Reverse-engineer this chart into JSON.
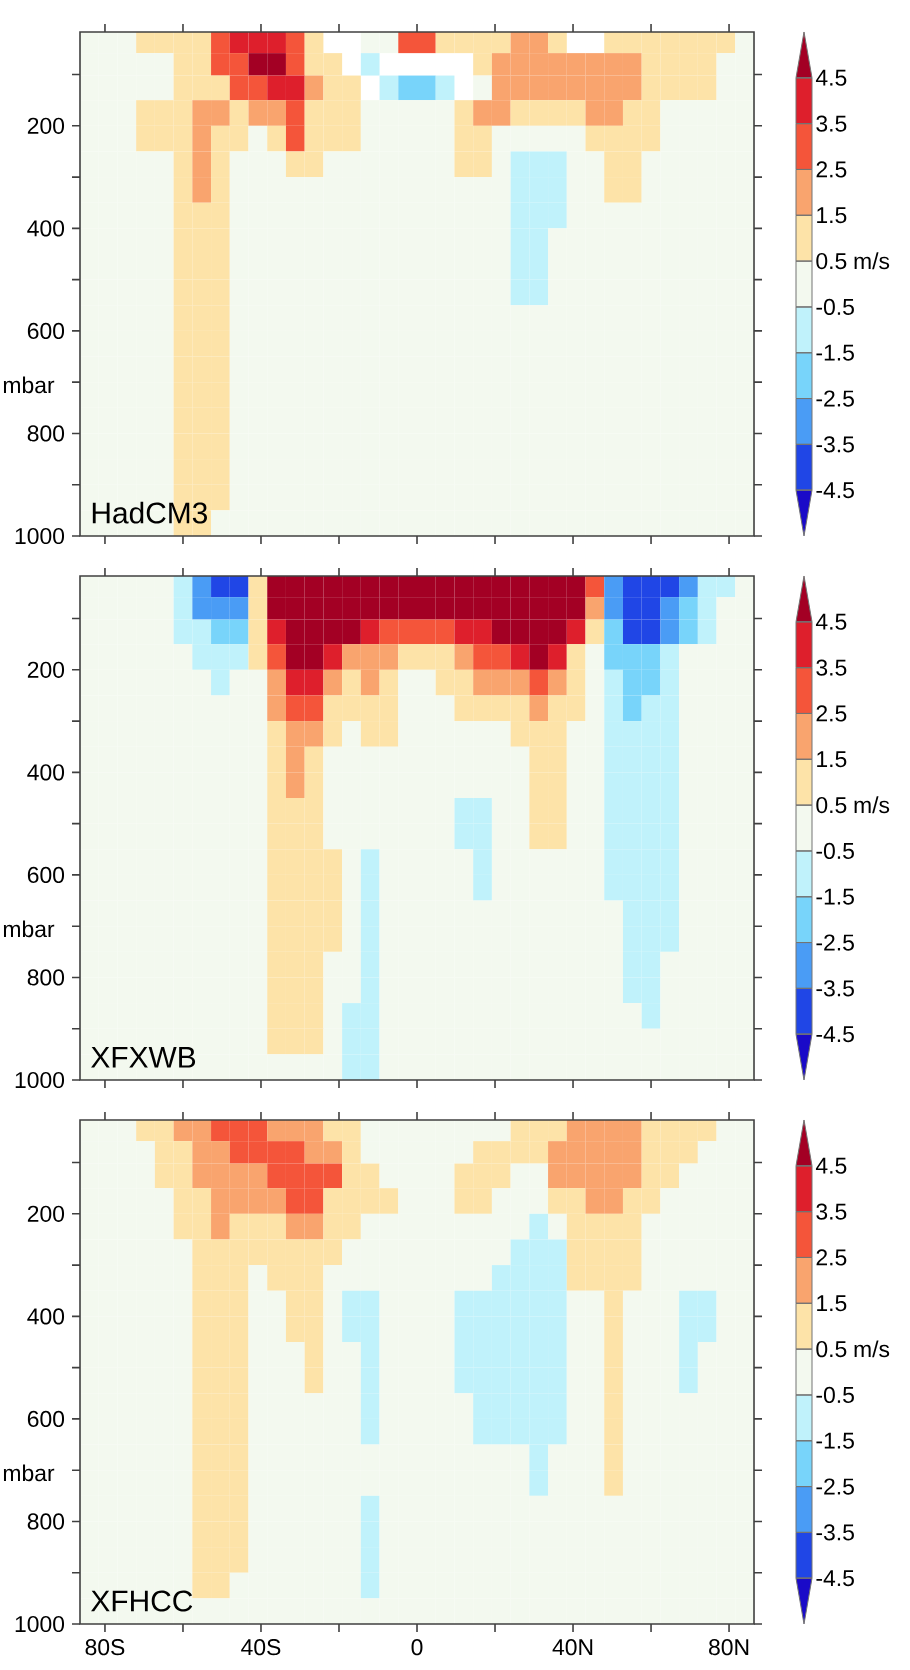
{
  "chart_data": [
    {
      "type": "heatmap",
      "title": "HadCM3",
      "ylabel": "mbar",
      "tick_labels": "y",
      "x": [
        -84.0,
        -79.2,
        -74.4,
        -69.6,
        -64.8,
        -60.0,
        -55.2,
        -50.4,
        -45.6,
        -40.8,
        -36.0,
        -31.2,
        -26.4,
        -21.6,
        -16.8,
        -12.0,
        -7.2,
        -2.4,
        2.4,
        7.2,
        12.0,
        16.8,
        21.6,
        26.4,
        31.2,
        36.0,
        40.8,
        45.6,
        50.4,
        55.2,
        60.0,
        64.8,
        69.6,
        74.4,
        79.2,
        84.0
      ],
      "y": [
        37.5,
        79,
        125,
        175,
        225,
        275,
        325,
        375,
        425,
        475,
        525,
        575,
        625,
        675,
        725,
        775,
        825,
        875,
        925,
        975
      ],
      "xlim": [
        -86.4,
        86.4
      ],
      "ylim": [
        1000,
        17
      ],
      "xticks": [
        {
          "value": -80,
          "label": null
        },
        {
          "value": -60,
          "label": null
        },
        {
          "value": -40,
          "label": null
        },
        {
          "value": -20,
          "label": null
        },
        {
          "value": 0,
          "label": null
        },
        {
          "value": 20,
          "label": null
        },
        {
          "value": 40,
          "label": null
        },
        {
          "value": 60,
          "label": null
        },
        {
          "value": 80,
          "label": null
        }
      ],
      "yticks": [
        {
          "value": 100,
          "label": null
        },
        200,
        {
          "value": 300,
          "label": null
        },
        400,
        {
          "value": 500,
          "label": null
        },
        600,
        {
          "value": 700,
          "label": null
        },
        800,
        {
          "value": 900,
          "label": null
        },
        1000
      ],
      "clim": [
        -5.5,
        5.5
      ],
      "cticks": [
        -4.5,
        -3.5,
        -2.5,
        -1.5,
        -0.5,
        0.5,
        1.5,
        2.5,
        3.5,
        4.5
      ],
      "clabel": "m/s",
      "cells": [
        [
          0,
          0,
          0,
          1,
          1,
          1,
          1,
          3,
          4,
          4,
          4,
          3,
          1,
          null,
          null,
          0,
          0,
          3,
          3,
          1,
          1,
          1,
          1,
          2,
          2,
          1,
          null,
          null,
          1,
          1,
          1,
          1,
          1,
          1,
          1,
          0
        ],
        [
          0,
          0,
          0,
          0,
          0,
          1,
          1,
          3,
          3,
          5,
          5,
          3,
          1,
          1,
          null,
          -1,
          null,
          null,
          null,
          null,
          null,
          1,
          2,
          2,
          2,
          2,
          2,
          2,
          2,
          2,
          1,
          1,
          1,
          1,
          0,
          0
        ],
        [
          0,
          0,
          0,
          0,
          0,
          1,
          1,
          1,
          3,
          3,
          4,
          4,
          2,
          1,
          1,
          null,
          -1,
          -2,
          -2,
          -1,
          null,
          0,
          2,
          2,
          2,
          2,
          2,
          2,
          2,
          2,
          1,
          1,
          1,
          1,
          0,
          0
        ],
        [
          0,
          0,
          0,
          1,
          1,
          1,
          2,
          2,
          1,
          2,
          2,
          3,
          1,
          1,
          1,
          0,
          0,
          0,
          0,
          0,
          1,
          2,
          2,
          1,
          1,
          1,
          1,
          2,
          2,
          1,
          1,
          0,
          0,
          0,
          0,
          0
        ],
        [
          0,
          0,
          0,
          1,
          1,
          1,
          2,
          1,
          1,
          0,
          1,
          3,
          1,
          1,
          1,
          0,
          0,
          0,
          0,
          0,
          1,
          1,
          0,
          0,
          0,
          0,
          0,
          1,
          1,
          1,
          1,
          0,
          0,
          0,
          0,
          0
        ],
        [
          0,
          0,
          0,
          0,
          0,
          1,
          2,
          1,
          0,
          0,
          0,
          1,
          1,
          0,
          0,
          0,
          0,
          0,
          0,
          0,
          1,
          1,
          0,
          -1,
          -1,
          -1,
          0,
          0,
          1,
          1,
          0,
          0,
          0,
          0,
          0,
          0
        ],
        [
          0,
          0,
          0,
          0,
          0,
          1,
          2,
          1,
          0,
          0,
          0,
          0,
          0,
          0,
          0,
          0,
          0,
          0,
          0,
          0,
          0,
          0,
          0,
          -1,
          -1,
          -1,
          0,
          0,
          1,
          1,
          0,
          0,
          0,
          0,
          0,
          0
        ],
        [
          0,
          0,
          0,
          0,
          0,
          1,
          1,
          1,
          0,
          0,
          0,
          0,
          0,
          0,
          0,
          0,
          0,
          0,
          0,
          0,
          0,
          0,
          0,
          -1,
          -1,
          -1,
          0,
          0,
          0,
          0,
          0,
          0,
          0,
          0,
          0,
          0
        ],
        [
          0,
          0,
          0,
          0,
          0,
          1,
          1,
          1,
          0,
          0,
          0,
          0,
          0,
          0,
          0,
          0,
          0,
          0,
          0,
          0,
          0,
          0,
          0,
          -1,
          -1,
          0,
          0,
          0,
          0,
          0,
          0,
          0,
          0,
          0,
          0,
          0
        ],
        [
          0,
          0,
          0,
          0,
          0,
          1,
          1,
          1,
          0,
          0,
          0,
          0,
          0,
          0,
          0,
          0,
          0,
          0,
          0,
          0,
          0,
          0,
          0,
          -1,
          -1,
          0,
          0,
          0,
          0,
          0,
          0,
          0,
          0,
          0,
          0,
          0
        ],
        [
          0,
          0,
          0,
          0,
          0,
          1,
          1,
          1,
          0,
          0,
          0,
          0,
          0,
          0,
          0,
          0,
          0,
          0,
          0,
          0,
          0,
          0,
          0,
          -1,
          -1,
          0,
          0,
          0,
          0,
          0,
          0,
          0,
          0,
          0,
          0,
          0
        ],
        [
          0,
          0,
          0,
          0,
          0,
          1,
          1,
          1,
          0,
          0,
          0,
          0,
          0,
          0,
          0,
          0,
          0,
          0,
          0,
          0,
          0,
          0,
          0,
          0,
          0,
          0,
          0,
          0,
          0,
          0,
          0,
          0,
          0,
          0,
          0,
          0
        ],
        [
          0,
          0,
          0,
          0,
          0,
          1,
          1,
          1,
          0,
          0,
          0,
          0,
          0,
          0,
          0,
          0,
          0,
          0,
          0,
          0,
          0,
          0,
          0,
          0,
          0,
          0,
          0,
          0,
          0,
          0,
          0,
          0,
          0,
          0,
          0,
          0
        ],
        [
          0,
          0,
          0,
          0,
          0,
          1,
          1,
          1,
          0,
          0,
          0,
          0,
          0,
          0,
          0,
          0,
          0,
          0,
          0,
          0,
          0,
          0,
          0,
          0,
          0,
          0,
          0,
          0,
          0,
          0,
          0,
          0,
          0,
          0,
          0,
          0
        ],
        [
          0,
          0,
          0,
          0,
          0,
          1,
          1,
          1,
          0,
          0,
          0,
          0,
          0,
          0,
          0,
          0,
          0,
          0,
          0,
          0,
          0,
          0,
          0,
          0,
          0,
          0,
          0,
          0,
          0,
          0,
          0,
          0,
          0,
          0,
          0,
          0
        ],
        [
          0,
          0,
          0,
          0,
          0,
          1,
          1,
          1,
          0,
          0,
          0,
          0,
          0,
          0,
          0,
          0,
          0,
          0,
          0,
          0,
          0,
          0,
          0,
          0,
          0,
          0,
          0,
          0,
          0,
          0,
          0,
          0,
          0,
          0,
          0,
          0
        ],
        [
          0,
          0,
          0,
          0,
          0,
          1,
          1,
          1,
          0,
          0,
          0,
          0,
          0,
          0,
          0,
          0,
          0,
          0,
          0,
          0,
          0,
          0,
          0,
          0,
          0,
          0,
          0,
          0,
          0,
          0,
          0,
          0,
          0,
          0,
          0,
          0
        ],
        [
          0,
          0,
          0,
          0,
          0,
          1,
          1,
          1,
          0,
          0,
          0,
          0,
          0,
          0,
          0,
          0,
          0,
          0,
          0,
          0,
          0,
          0,
          0,
          0,
          0,
          0,
          0,
          0,
          0,
          0,
          0,
          0,
          0,
          0,
          0,
          0
        ],
        [
          0,
          0,
          0,
          0,
          0,
          1,
          1,
          1,
          0,
          0,
          0,
          0,
          0,
          0,
          0,
          0,
          0,
          0,
          0,
          0,
          0,
          0,
          0,
          0,
          0,
          0,
          0,
          0,
          0,
          0,
          0,
          0,
          0,
          0,
          0,
          0
        ],
        [
          0,
          0,
          0,
          0,
          0,
          1,
          1,
          0,
          0,
          0,
          0,
          0,
          0,
          0,
          0,
          0,
          0,
          0,
          0,
          0,
          0,
          0,
          0,
          0,
          0,
          0,
          0,
          0,
          0,
          0,
          0,
          0,
          0,
          0,
          0,
          0
        ]
      ]
    },
    {
      "type": "heatmap",
      "title": "XFXWB",
      "ylabel": "mbar",
      "tick_labels": "y",
      "x": [
        -84.0,
        -79.2,
        -74.4,
        -69.6,
        -64.8,
        -60.0,
        -55.2,
        -50.4,
        -45.6,
        -40.8,
        -36.0,
        -31.2,
        -26.4,
        -21.6,
        -16.8,
        -12.0,
        -7.2,
        -2.4,
        2.4,
        7.2,
        12.0,
        16.8,
        21.6,
        26.4,
        31.2,
        36.0,
        40.8,
        45.6,
        50.4,
        55.2,
        60.0,
        64.8,
        69.6,
        74.4,
        79.2,
        84.0
      ],
      "y": [
        37.5,
        79,
        125,
        175,
        225,
        275,
        325,
        375,
        425,
        475,
        525,
        575,
        625,
        675,
        725,
        775,
        825,
        875,
        925,
        975
      ],
      "xlim": [
        -86.4,
        86.4
      ],
      "ylim": [
        1000,
        17
      ],
      "xticks": [
        {
          "value": -80,
          "label": null
        },
        {
          "value": -60,
          "label": null
        },
        {
          "value": -40,
          "label": null
        },
        {
          "value": -20,
          "label": null
        },
        {
          "value": 0,
          "label": null
        },
        {
          "value": 20,
          "label": null
        },
        {
          "value": 40,
          "label": null
        },
        {
          "value": 60,
          "label": null
        },
        {
          "value": 80,
          "label": null
        }
      ],
      "yticks": [
        {
          "value": 100,
          "label": null
        },
        200,
        {
          "value": 300,
          "label": null
        },
        400,
        {
          "value": 500,
          "label": null
        },
        600,
        {
          "value": 700,
          "label": null
        },
        800,
        {
          "value": 900,
          "label": null
        },
        1000
      ],
      "clim": [
        -5.5,
        5.5
      ],
      "cticks": [
        -4.5,
        -3.5,
        -2.5,
        -1.5,
        -0.5,
        0.5,
        1.5,
        2.5,
        3.5,
        4.5
      ],
      "clabel": "m/s",
      "cells": [
        [
          0,
          0,
          0,
          0,
          0,
          -1,
          -3,
          -4,
          -4,
          1,
          5,
          5,
          5,
          5,
          5,
          5,
          5,
          5,
          5,
          5,
          5,
          5,
          5,
          5,
          5,
          5,
          5,
          3,
          -3,
          -4,
          -4,
          -4,
          -3,
          -1,
          -1,
          0
        ],
        [
          0,
          0,
          0,
          0,
          0,
          -1,
          -3,
          -3,
          -3,
          1,
          5,
          5,
          5,
          5,
          5,
          5,
          5,
          5,
          5,
          5,
          5,
          5,
          5,
          5,
          5,
          5,
          5,
          2,
          -3,
          -4,
          -4,
          -3,
          -2,
          -1,
          0,
          0
        ],
        [
          0,
          0,
          0,
          0,
          0,
          -1,
          -1,
          -2,
          -2,
          1,
          4,
          5,
          5,
          5,
          5,
          4,
          3,
          3,
          3,
          3,
          4,
          4,
          5,
          5,
          5,
          5,
          4,
          1,
          -2,
          -4,
          -4,
          -3,
          -2,
          -1,
          0,
          0
        ],
        [
          0,
          0,
          0,
          0,
          0,
          0,
          -1,
          -1,
          -1,
          1,
          3,
          5,
          5,
          4,
          2,
          2,
          2,
          1,
          1,
          1,
          2,
          3,
          3,
          4,
          5,
          4,
          1,
          0,
          -2,
          -2,
          -2,
          -1,
          0,
          0,
          0,
          0
        ],
        [
          0,
          0,
          0,
          0,
          0,
          0,
          0,
          -1,
          0,
          0,
          2,
          4,
          4,
          2,
          1,
          2,
          1,
          0,
          0,
          1,
          1,
          2,
          2,
          2,
          3,
          2,
          1,
          0,
          -1,
          -2,
          -2,
          -1,
          0,
          0,
          0,
          0
        ],
        [
          0,
          0,
          0,
          0,
          0,
          0,
          0,
          0,
          0,
          0,
          2,
          3,
          3,
          1,
          1,
          1,
          1,
          0,
          0,
          0,
          1,
          1,
          1,
          1,
          2,
          1,
          1,
          0,
          -1,
          -2,
          -1,
          -1,
          0,
          0,
          0,
          0
        ],
        [
          0,
          0,
          0,
          0,
          0,
          0,
          0,
          0,
          0,
          0,
          1,
          2,
          2,
          1,
          0,
          1,
          1,
          0,
          0,
          0,
          0,
          0,
          0,
          1,
          1,
          1,
          0,
          0,
          -1,
          -1,
          -1,
          -1,
          0,
          0,
          0,
          0
        ],
        [
          0,
          0,
          0,
          0,
          0,
          0,
          0,
          0,
          0,
          0,
          1,
          2,
          1,
          0,
          0,
          0,
          0,
          0,
          0,
          0,
          0,
          0,
          0,
          0,
          1,
          1,
          0,
          0,
          -1,
          -1,
          -1,
          -1,
          0,
          0,
          0,
          0
        ],
        [
          0,
          0,
          0,
          0,
          0,
          0,
          0,
          0,
          0,
          0,
          1,
          2,
          1,
          0,
          0,
          0,
          0,
          0,
          0,
          0,
          0,
          0,
          0,
          0,
          1,
          1,
          0,
          0,
          -1,
          -1,
          -1,
          -1,
          0,
          0,
          0,
          0
        ],
        [
          0,
          0,
          0,
          0,
          0,
          0,
          0,
          0,
          0,
          0,
          1,
          1,
          1,
          0,
          0,
          0,
          0,
          0,
          0,
          0,
          -1,
          -1,
          0,
          0,
          1,
          1,
          0,
          0,
          -1,
          -1,
          -1,
          -1,
          0,
          0,
          0,
          0
        ],
        [
          0,
          0,
          0,
          0,
          0,
          0,
          0,
          0,
          0,
          0,
          1,
          1,
          1,
          0,
          0,
          0,
          0,
          0,
          0,
          0,
          -1,
          -1,
          0,
          0,
          1,
          1,
          0,
          0,
          -1,
          -1,
          -1,
          -1,
          0,
          0,
          0,
          0
        ],
        [
          0,
          0,
          0,
          0,
          0,
          0,
          0,
          0,
          0,
          0,
          1,
          1,
          1,
          1,
          0,
          -1,
          0,
          0,
          0,
          0,
          0,
          -1,
          0,
          0,
          0,
          0,
          0,
          0,
          -1,
          -1,
          -1,
          -1,
          0,
          0,
          0,
          0
        ],
        [
          0,
          0,
          0,
          0,
          0,
          0,
          0,
          0,
          0,
          0,
          1,
          1,
          1,
          1,
          0,
          -1,
          0,
          0,
          0,
          0,
          0,
          -1,
          0,
          0,
          0,
          0,
          0,
          0,
          -1,
          -1,
          -1,
          -1,
          0,
          0,
          0,
          0
        ],
        [
          0,
          0,
          0,
          0,
          0,
          0,
          0,
          0,
          0,
          0,
          1,
          1,
          1,
          1,
          0,
          -1,
          0,
          0,
          0,
          0,
          0,
          0,
          0,
          0,
          0,
          0,
          0,
          0,
          0,
          -1,
          -1,
          -1,
          0,
          0,
          0,
          0
        ],
        [
          0,
          0,
          0,
          0,
          0,
          0,
          0,
          0,
          0,
          0,
          1,
          1,
          1,
          1,
          0,
          -1,
          0,
          0,
          0,
          0,
          0,
          0,
          0,
          0,
          0,
          0,
          0,
          0,
          0,
          -1,
          -1,
          -1,
          0,
          0,
          0,
          0
        ],
        [
          0,
          0,
          0,
          0,
          0,
          0,
          0,
          0,
          0,
          0,
          1,
          1,
          1,
          0,
          0,
          -1,
          0,
          0,
          0,
          0,
          0,
          0,
          0,
          0,
          0,
          0,
          0,
          0,
          0,
          -1,
          -1,
          0,
          0,
          0,
          0,
          0
        ],
        [
          0,
          0,
          0,
          0,
          0,
          0,
          0,
          0,
          0,
          0,
          1,
          1,
          1,
          0,
          0,
          -1,
          0,
          0,
          0,
          0,
          0,
          0,
          0,
          0,
          0,
          0,
          0,
          0,
          0,
          -1,
          -1,
          0,
          0,
          0,
          0,
          0
        ],
        [
          0,
          0,
          0,
          0,
          0,
          0,
          0,
          0,
          0,
          0,
          1,
          1,
          1,
          0,
          -1,
          -1,
          0,
          0,
          0,
          0,
          0,
          0,
          0,
          0,
          0,
          0,
          0,
          0,
          0,
          0,
          -1,
          0,
          0,
          0,
          0,
          0
        ],
        [
          0,
          0,
          0,
          0,
          0,
          0,
          0,
          0,
          0,
          0,
          1,
          1,
          1,
          0,
          -1,
          -1,
          0,
          0,
          0,
          0,
          0,
          0,
          0,
          0,
          0,
          0,
          0,
          0,
          0,
          0,
          0,
          0,
          0,
          0,
          0,
          0
        ],
        [
          0,
          0,
          0,
          0,
          0,
          0,
          0,
          0,
          0,
          0,
          0,
          0,
          0,
          0,
          -1,
          -1,
          0,
          0,
          0,
          0,
          0,
          0,
          0,
          0,
          0,
          0,
          0,
          0,
          0,
          0,
          0,
          0,
          0,
          0,
          0,
          0
        ]
      ]
    },
    {
      "type": "heatmap",
      "title": "XFHCC",
      "ylabel": "mbar",
      "x": [
        -84.0,
        -79.2,
        -74.4,
        -69.6,
        -64.8,
        -60.0,
        -55.2,
        -50.4,
        -45.6,
        -40.8,
        -36.0,
        -31.2,
        -26.4,
        -21.6,
        -16.8,
        -12.0,
        -7.2,
        -2.4,
        2.4,
        7.2,
        12.0,
        16.8,
        21.6,
        26.4,
        31.2,
        36.0,
        40.8,
        45.6,
        50.4,
        55.2,
        60.0,
        64.8,
        69.6,
        74.4,
        79.2,
        84.0
      ],
      "y": [
        37.5,
        79,
        125,
        175,
        225,
        275,
        325,
        375,
        425,
        475,
        525,
        575,
        625,
        675,
        725,
        775,
        825,
        875,
        925,
        975
      ],
      "xlim": [
        -86.4,
        86.4
      ],
      "ylim": [
        1000,
        17
      ],
      "xticks": [
        {
          "value": -80,
          "label": "80S"
        },
        {
          "value": -60,
          "label": null
        },
        {
          "value": -40,
          "label": "40S"
        },
        {
          "value": -20,
          "label": null
        },
        0,
        {
          "value": 20,
          "label": null
        },
        {
          "value": 40,
          "label": "40N"
        },
        {
          "value": 60,
          "label": null
        },
        {
          "value": 80,
          "label": "80N"
        }
      ],
      "yticks": [
        {
          "value": 100,
          "label": null
        },
        200,
        {
          "value": 300,
          "label": null
        },
        400,
        {
          "value": 500,
          "label": null
        },
        600,
        {
          "value": 700,
          "label": null
        },
        800,
        {
          "value": 900,
          "label": null
        },
        1000
      ],
      "clim": [
        -5.5,
        5.5
      ],
      "cticks": [
        -4.5,
        -3.5,
        -2.5,
        -1.5,
        -0.5,
        0.5,
        1.5,
        2.5,
        3.5,
        4.5
      ],
      "clabel": "m/s",
      "cells": [
        [
          0,
          0,
          0,
          1,
          1,
          2,
          2,
          3,
          3,
          3,
          2,
          2,
          2,
          1,
          1,
          0,
          0,
          0,
          0,
          0,
          0,
          0,
          0,
          1,
          1,
          1,
          2,
          2,
          2,
          2,
          1,
          1,
          1,
          1,
          0,
          0
        ],
        [
          0,
          0,
          0,
          0,
          1,
          1,
          2,
          2,
          3,
          3,
          3,
          3,
          2,
          2,
          1,
          0,
          0,
          0,
          0,
          0,
          0,
          1,
          1,
          1,
          1,
          2,
          2,
          2,
          2,
          2,
          1,
          1,
          1,
          0,
          0,
          0
        ],
        [
          0,
          0,
          0,
          0,
          1,
          1,
          2,
          2,
          2,
          2,
          3,
          3,
          3,
          3,
          1,
          1,
          0,
          0,
          0,
          0,
          1,
          1,
          1,
          0,
          0,
          2,
          2,
          2,
          2,
          2,
          1,
          1,
          0,
          0,
          0,
          0
        ],
        [
          0,
          0,
          0,
          0,
          0,
          1,
          1,
          2,
          2,
          2,
          2,
          3,
          3,
          1,
          1,
          1,
          1,
          0,
          0,
          0,
          1,
          1,
          0,
          0,
          0,
          1,
          1,
          2,
          2,
          1,
          1,
          0,
          0,
          0,
          0,
          0
        ],
        [
          0,
          0,
          0,
          0,
          0,
          1,
          1,
          2,
          1,
          1,
          1,
          2,
          2,
          1,
          1,
          0,
          0,
          0,
          0,
          0,
          0,
          0,
          0,
          0,
          -1,
          0,
          1,
          1,
          1,
          1,
          0,
          0,
          0,
          0,
          0,
          0
        ],
        [
          0,
          0,
          0,
          0,
          0,
          0,
          1,
          1,
          1,
          1,
          1,
          1,
          1,
          1,
          0,
          0,
          0,
          0,
          0,
          0,
          0,
          0,
          0,
          -1,
          -1,
          -1,
          1,
          1,
          1,
          1,
          0,
          0,
          0,
          0,
          0,
          0
        ],
        [
          0,
          0,
          0,
          0,
          0,
          0,
          1,
          1,
          1,
          0,
          1,
          1,
          1,
          0,
          0,
          0,
          0,
          0,
          0,
          0,
          0,
          0,
          -1,
          -1,
          -1,
          -1,
          1,
          1,
          1,
          1,
          0,
          0,
          0,
          0,
          0,
          0
        ],
        [
          0,
          0,
          0,
          0,
          0,
          0,
          1,
          1,
          1,
          0,
          0,
          1,
          1,
          0,
          -1,
          -1,
          0,
          0,
          0,
          0,
          -1,
          -1,
          -1,
          -1,
          -1,
          -1,
          0,
          0,
          1,
          0,
          0,
          0,
          -1,
          -1,
          0,
          0
        ],
        [
          0,
          0,
          0,
          0,
          0,
          0,
          1,
          1,
          1,
          0,
          0,
          1,
          1,
          0,
          -1,
          -1,
          0,
          0,
          0,
          0,
          -1,
          -1,
          -1,
          -1,
          -1,
          -1,
          0,
          0,
          1,
          0,
          0,
          0,
          -1,
          -1,
          0,
          0
        ],
        [
          0,
          0,
          0,
          0,
          0,
          0,
          1,
          1,
          1,
          0,
          0,
          0,
          1,
          0,
          0,
          -1,
          0,
          0,
          0,
          0,
          -1,
          -1,
          -1,
          -1,
          -1,
          -1,
          0,
          0,
          1,
          0,
          0,
          0,
          -1,
          0,
          0,
          0
        ],
        [
          0,
          0,
          0,
          0,
          0,
          0,
          1,
          1,
          1,
          0,
          0,
          0,
          1,
          0,
          0,
          -1,
          0,
          0,
          0,
          0,
          -1,
          -1,
          -1,
          -1,
          -1,
          -1,
          0,
          0,
          1,
          0,
          0,
          0,
          -1,
          0,
          0,
          0
        ],
        [
          0,
          0,
          0,
          0,
          0,
          0,
          1,
          1,
          1,
          0,
          0,
          0,
          0,
          0,
          0,
          -1,
          0,
          0,
          0,
          0,
          0,
          -1,
          -1,
          -1,
          -1,
          -1,
          0,
          0,
          1,
          0,
          0,
          0,
          0,
          0,
          0,
          0
        ],
        [
          0,
          0,
          0,
          0,
          0,
          0,
          1,
          1,
          1,
          0,
          0,
          0,
          0,
          0,
          0,
          -1,
          0,
          0,
          0,
          0,
          0,
          -1,
          -1,
          -1,
          -1,
          -1,
          0,
          0,
          1,
          0,
          0,
          0,
          0,
          0,
          0,
          0
        ],
        [
          0,
          0,
          0,
          0,
          0,
          0,
          1,
          1,
          1,
          0,
          0,
          0,
          0,
          0,
          0,
          0,
          0,
          0,
          0,
          0,
          0,
          0,
          0,
          0,
          -1,
          0,
          0,
          0,
          1,
          0,
          0,
          0,
          0,
          0,
          0,
          0
        ],
        [
          0,
          0,
          0,
          0,
          0,
          0,
          1,
          1,
          1,
          0,
          0,
          0,
          0,
          0,
          0,
          0,
          0,
          0,
          0,
          0,
          0,
          0,
          0,
          0,
          -1,
          0,
          0,
          0,
          1,
          0,
          0,
          0,
          0,
          0,
          0,
          0
        ],
        [
          0,
          0,
          0,
          0,
          0,
          0,
          1,
          1,
          1,
          0,
          0,
          0,
          0,
          0,
          0,
          -1,
          0,
          0,
          0,
          0,
          0,
          0,
          0,
          0,
          0,
          0,
          0,
          0,
          0,
          0,
          0,
          0,
          0,
          0,
          0,
          0
        ],
        [
          0,
          0,
          0,
          0,
          0,
          0,
          1,
          1,
          1,
          0,
          0,
          0,
          0,
          0,
          0,
          -1,
          0,
          0,
          0,
          0,
          0,
          0,
          0,
          0,
          0,
          0,
          0,
          0,
          0,
          0,
          0,
          0,
          0,
          0,
          0,
          0
        ],
        [
          0,
          0,
          0,
          0,
          0,
          0,
          1,
          1,
          1,
          0,
          0,
          0,
          0,
          0,
          0,
          -1,
          0,
          0,
          0,
          0,
          0,
          0,
          0,
          0,
          0,
          0,
          0,
          0,
          0,
          0,
          0,
          0,
          0,
          0,
          0,
          0
        ],
        [
          0,
          0,
          0,
          0,
          0,
          0,
          1,
          1,
          0,
          0,
          0,
          0,
          0,
          0,
          0,
          -1,
          0,
          0,
          0,
          0,
          0,
          0,
          0,
          0,
          0,
          0,
          0,
          0,
          0,
          0,
          0,
          0,
          0,
          0,
          0,
          0
        ],
        [
          0,
          0,
          0,
          0,
          0,
          0,
          0,
          0,
          0,
          0,
          0,
          0,
          0,
          0,
          0,
          0,
          0,
          0,
          0,
          0,
          0,
          0,
          0,
          0,
          0,
          0,
          0,
          0,
          0,
          0,
          0,
          0,
          0,
          0,
          0,
          0
        ]
      ]
    }
  ]
}
